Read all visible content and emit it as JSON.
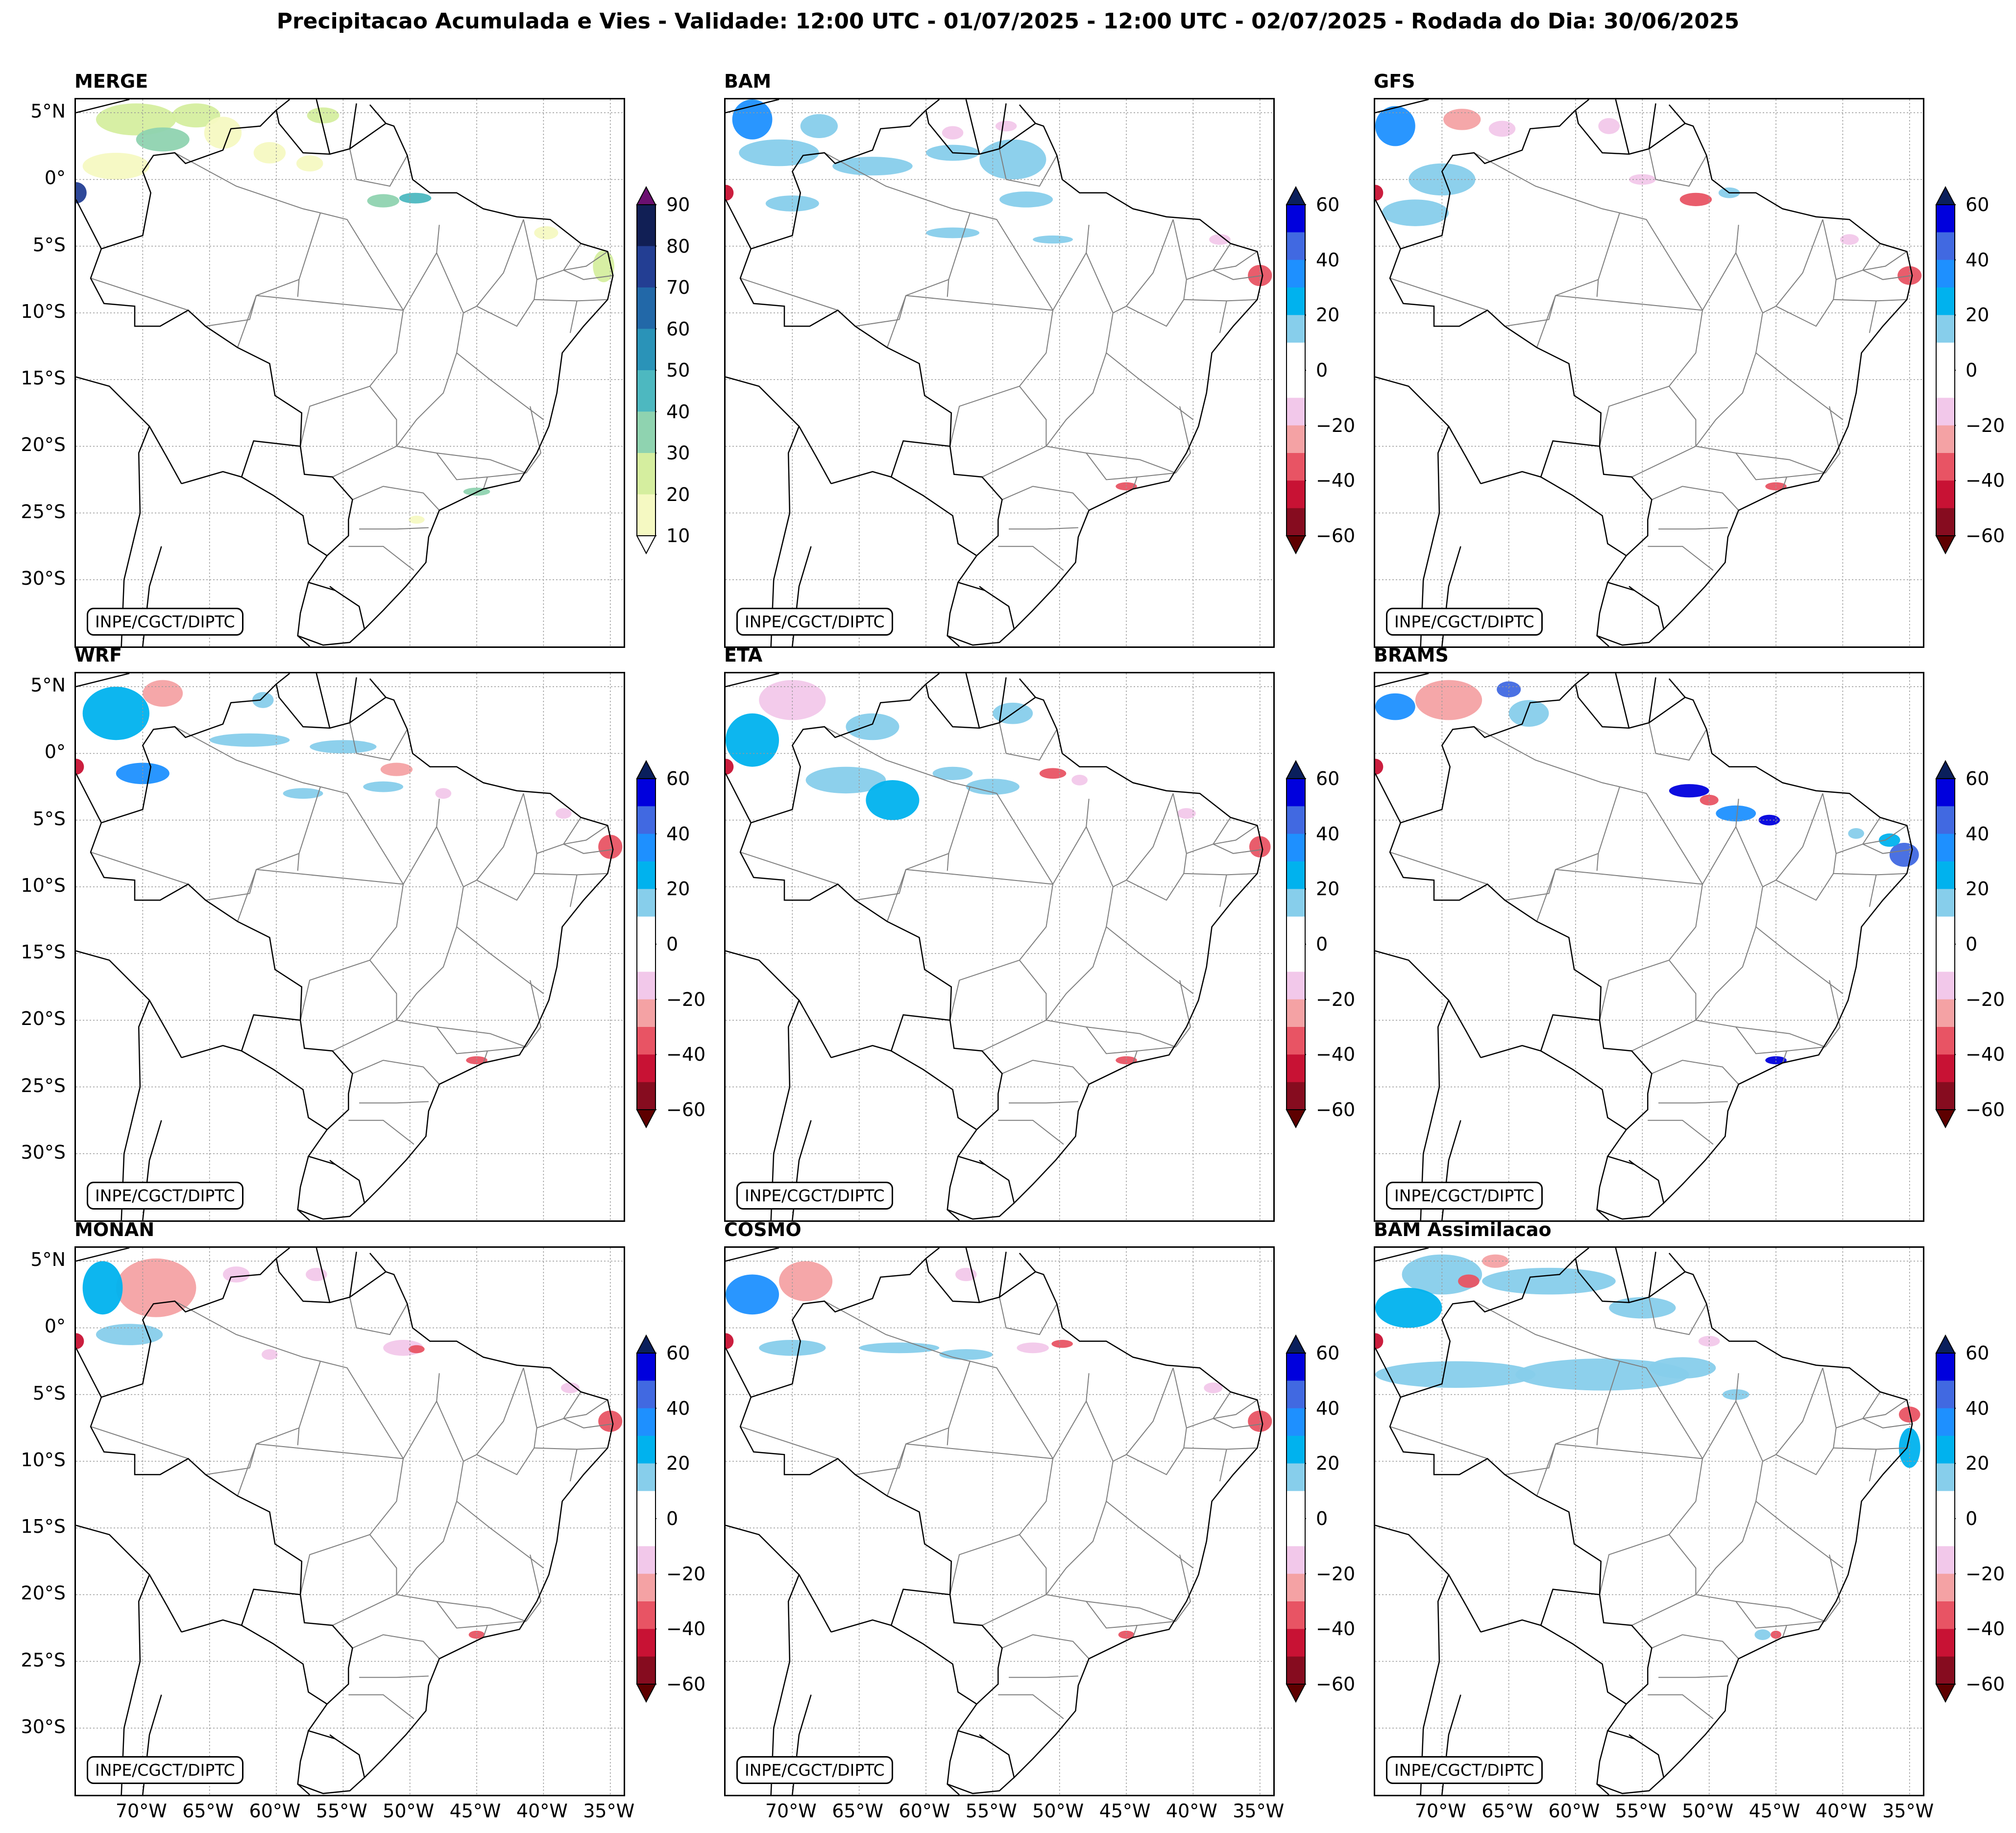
{
  "figure": {
    "title": "Precipitacao Acumulada e Vies - Validade: 12:00 UTC - 01/07/2025 - 12:00 UTC - 02/07/2025 - Rodada do Dia: 30/06/2025"
  },
  "axes": {
    "lat_ticks": [
      "5°N",
      "0°",
      "5°S",
      "10°S",
      "15°S",
      "20°S",
      "25°S",
      "30°S"
    ],
    "lon_ticks": [
      "70°W",
      "65°W",
      "60°W",
      "55°W",
      "50°W",
      "45°W",
      "40°W",
      "35°W"
    ]
  },
  "credit": "INPE/CGCT/DIPTC",
  "panels": [
    {
      "title": "MERGE",
      "kind": "precip"
    },
    {
      "title": "BAM",
      "kind": "bias"
    },
    {
      "title": "GFS",
      "kind": "bias"
    },
    {
      "title": "WRF",
      "kind": "bias"
    },
    {
      "title": "ETA",
      "kind": "bias"
    },
    {
      "title": "BRAMS",
      "kind": "bias"
    },
    {
      "title": "MONAN",
      "kind": "bias"
    },
    {
      "title": "COSMO",
      "kind": "bias"
    },
    {
      "title": "BAM Assimilacao",
      "kind": "bias"
    }
  ],
  "colorbars": {
    "precip": {
      "ticks": [
        "90",
        "80",
        "70",
        "60",
        "50",
        "40",
        "30",
        "20",
        "10"
      ],
      "colors": [
        "#f5f9c2",
        "#d5ee9f",
        "#8fd3b0",
        "#4db8c0",
        "#2a93b8",
        "#2268a8",
        "#233e93",
        "#111f55"
      ],
      "extend_top": "#6b1070",
      "extend_bottom": "#ffffff"
    },
    "bias": {
      "ticks": [
        "60",
        "40",
        "20",
        "0",
        "−20",
        "−40",
        "−60"
      ],
      "colors": [
        "#860c1f",
        "#c81234",
        "#e85464",
        "#f4a2a4",
        "#f2c8ea",
        "#ffffff",
        "#ffffff",
        "#87ceeb",
        "#00b2ee",
        "#1e90ff",
        "#4169e1",
        "#0000dd"
      ],
      "extend_top": "#0a1f5c",
      "extend_bottom": "#5e0000"
    }
  }
}
